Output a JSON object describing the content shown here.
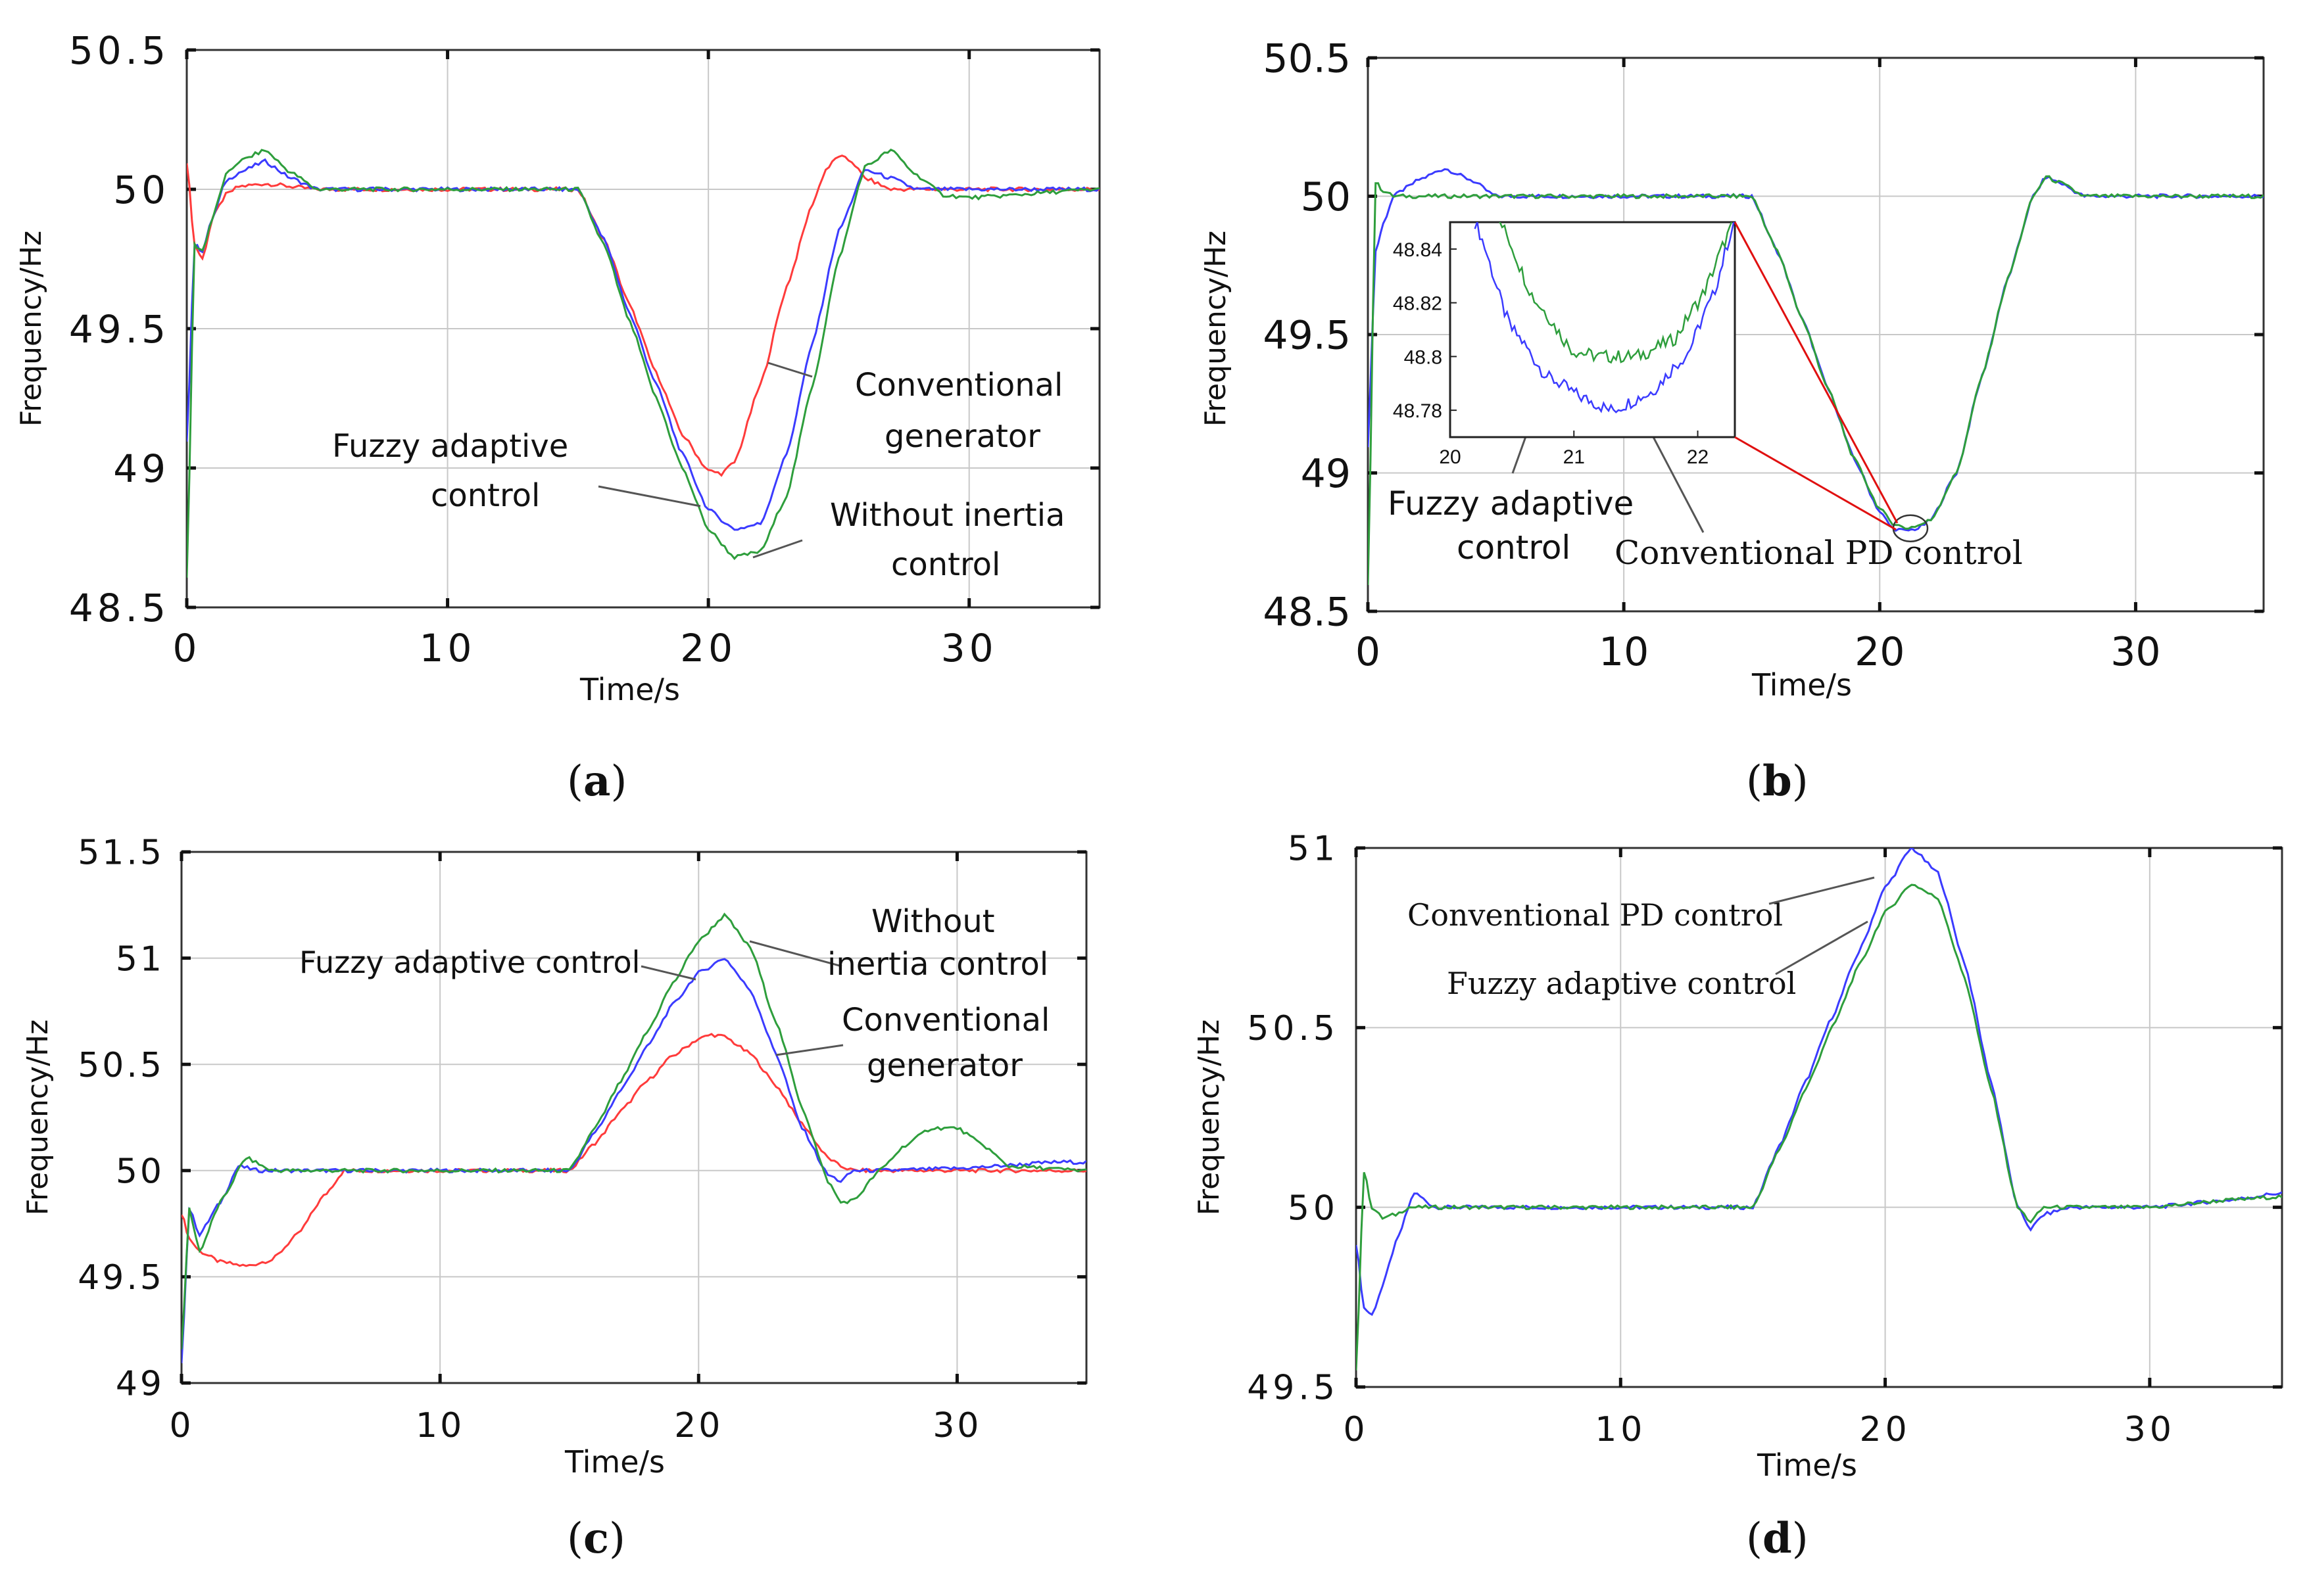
{
  "figure": {
    "colors": {
      "blue": "#3b3bff",
      "green": "#2e9e3c",
      "red": "#ff3b3b",
      "grid": "#c8c8c8",
      "axis": "#333333",
      "leader": "#555555",
      "zoom_line": "#e01010"
    }
  },
  "chart_data": [
    {
      "id": "a",
      "type": "line",
      "caption_letter": "a",
      "xlabel": "Time/s",
      "ylabel": "Frequency/Hz",
      "xlim": [
        0,
        35
      ],
      "ylim": [
        48.5,
        50.5
      ],
      "xticks": [
        0,
        10,
        20,
        30
      ],
      "xtick_labels": [
        "0",
        "10",
        "20",
        "30"
      ],
      "yticks": [
        48.5,
        49,
        49.5,
        50,
        50.5
      ],
      "ytick_labels": [
        "48.5",
        "49",
        "49.5",
        "50",
        "50.5"
      ],
      "grid": true,
      "series": [
        {
          "name": "Conventional generator",
          "color_key": "red",
          "x": [
            0,
            0.3,
            0.6,
            1.0,
            1.5,
            2,
            3,
            5,
            10,
            15,
            16,
            17,
            18,
            19,
            20,
            20.5,
            21,
            22,
            23,
            24,
            24.5,
            25,
            25.5,
            26,
            27,
            28,
            30,
            35
          ],
          "y": [
            50.1,
            49.8,
            49.75,
            49.9,
            49.98,
            50.01,
            50.02,
            50.0,
            50.0,
            50.0,
            49.82,
            49.58,
            49.34,
            49.12,
            48.99,
            48.98,
            49.02,
            49.3,
            49.65,
            49.95,
            50.07,
            50.12,
            50.1,
            50.04,
            50.0,
            50.0,
            50.0,
            50.0
          ]
        },
        {
          "name": "Fuzzy adaptive control",
          "color_key": "blue",
          "x": [
            0,
            0.3,
            0.6,
            1.0,
            1.5,
            2,
            3,
            4,
            5,
            10,
            15,
            16,
            17,
            18,
            19,
            20,
            21,
            22,
            23,
            24,
            25,
            26,
            27,
            28,
            30,
            35
          ],
          "y": [
            49.1,
            49.8,
            49.78,
            49.9,
            50.03,
            50.06,
            50.1,
            50.04,
            50.0,
            50.0,
            50.0,
            49.82,
            49.55,
            49.3,
            49.05,
            48.85,
            48.78,
            48.8,
            49.05,
            49.45,
            49.85,
            50.07,
            50.04,
            50.0,
            50.0,
            50.0
          ]
        },
        {
          "name": "Without inertia control",
          "color_key": "green",
          "x": [
            0,
            0.3,
            0.6,
            1.0,
            1.5,
            2,
            3,
            4,
            5,
            10,
            15,
            16,
            17,
            18,
            19,
            20,
            21,
            22,
            23,
            24,
            25,
            26,
            27,
            28,
            29,
            30,
            35
          ],
          "y": [
            48.6,
            49.8,
            49.78,
            49.9,
            50.05,
            50.1,
            50.14,
            50.06,
            50.0,
            50.0,
            50.0,
            49.8,
            49.52,
            49.25,
            49.0,
            48.78,
            48.68,
            48.7,
            48.9,
            49.3,
            49.75,
            50.08,
            50.14,
            50.05,
            49.98,
            49.97,
            50.0
          ]
        }
      ],
      "annotations": [
        {
          "text": "Conventional",
          "series": "Conventional generator"
        },
        {
          "text": "generator",
          "series": "Conventional generator"
        },
        {
          "text": "Fuzzy adaptive",
          "series": "Fuzzy adaptive control"
        },
        {
          "text": "control",
          "series": "Fuzzy adaptive control"
        },
        {
          "text": "Without inertia",
          "series": "Without inertia control"
        },
        {
          "text": "control",
          "series": "Without inertia control"
        }
      ]
    },
    {
      "id": "b",
      "type": "line",
      "caption_letter": "b",
      "xlabel": "Time/s",
      "ylabel": "Frequency/Hz",
      "xlim": [
        0,
        35
      ],
      "ylim": [
        48.5,
        50.5
      ],
      "xticks": [
        0,
        10,
        20,
        30
      ],
      "xtick_labels": [
        "0",
        "10",
        "20",
        "30"
      ],
      "yticks": [
        48.5,
        49,
        49.5,
        50,
        50.5
      ],
      "ytick_labels": [
        "48.5",
        "49",
        "49.5",
        "50",
        "50.5"
      ],
      "grid": true,
      "series": [
        {
          "name": "Conventional PD control",
          "color_key": "blue",
          "x": [
            0,
            0.3,
            0.6,
            1.0,
            1.5,
            2,
            3,
            4,
            5,
            10,
            15,
            16,
            17,
            18,
            19,
            20,
            20.5,
            21,
            21.5,
            22,
            23,
            24,
            25,
            26,
            26.5,
            27,
            28,
            30,
            35
          ],
          "y": [
            49.1,
            49.8,
            49.9,
            50.0,
            50.03,
            50.06,
            50.1,
            50.06,
            50.0,
            50.0,
            50.0,
            49.8,
            49.55,
            49.3,
            49.05,
            48.86,
            48.8,
            48.79,
            48.8,
            48.83,
            49.0,
            49.35,
            49.7,
            50.0,
            50.07,
            50.05,
            50.0,
            50.0,
            50.0
          ]
        },
        {
          "name": "Fuzzy adaptive control",
          "color_key": "green",
          "x": [
            0,
            0.3,
            0.6,
            1.0,
            1.5,
            2,
            3,
            4,
            5,
            10,
            15,
            16,
            17,
            18,
            19,
            20,
            20.5,
            21,
            21.5,
            22,
            23,
            24,
            25,
            26,
            26.5,
            27,
            28,
            30,
            35
          ],
          "y": [
            48.6,
            50.05,
            50.02,
            50.0,
            50.0,
            50.0,
            50.0,
            50.0,
            50.0,
            50.0,
            50.0,
            49.8,
            49.55,
            49.3,
            49.05,
            48.87,
            48.82,
            48.8,
            48.81,
            48.83,
            49.0,
            49.35,
            49.7,
            50.0,
            50.07,
            50.05,
            50.0,
            50.0,
            50.0
          ]
        }
      ],
      "inset": {
        "xlim": [
          20,
          22.3
        ],
        "ylim": [
          48.77,
          48.85
        ],
        "xticks": [
          20,
          21,
          22
        ],
        "xtick_labels": [
          "20",
          "21",
          "22"
        ],
        "yticks": [
          48.78,
          48.8,
          48.82,
          48.84
        ],
        "ytick_labels": [
          "48.78",
          "48.8",
          "48.82",
          "48.84"
        ],
        "series": [
          {
            "name": "Conventional PD control",
            "color_key": "blue",
            "x": [
              20.2,
              20.5,
              20.8,
              21.1,
              21.3,
              21.6,
              21.9,
              22.1,
              22.3
            ],
            "y": [
              48.85,
              48.81,
              48.792,
              48.784,
              48.78,
              48.786,
              48.8,
              48.82,
              48.85
            ]
          },
          {
            "name": "Fuzzy adaptive control",
            "color_key": "green",
            "x": [
              20.4,
              20.7,
              21.0,
              21.2,
              21.5,
              21.8,
              22.0,
              22.3
            ],
            "y": [
              48.85,
              48.82,
              48.802,
              48.8,
              48.8,
              48.806,
              48.82,
              48.85
            ]
          }
        ]
      },
      "annotations": [
        {
          "text": "Fuzzy adaptive",
          "series": "Fuzzy adaptive control"
        },
        {
          "text": "control",
          "series": "Fuzzy adaptive control"
        },
        {
          "text": "Conventional PD control",
          "series": "Conventional PD control"
        }
      ]
    },
    {
      "id": "c",
      "type": "line",
      "caption_letter": "c",
      "xlabel": "Time/s",
      "ylabel": "Frequency/Hz",
      "xlim": [
        0,
        35
      ],
      "ylim": [
        49,
        51.5
      ],
      "xticks": [
        0,
        10,
        20,
        30
      ],
      "xtick_labels": [
        "0",
        "10",
        "20",
        "30"
      ],
      "yticks": [
        49,
        49.5,
        50,
        50.5,
        51,
        51.5
      ],
      "ytick_labels": [
        "49",
        "49.5",
        "50",
        "50.5",
        "51",
        "51.5"
      ],
      "grid": true,
      "series": [
        {
          "name": "Conventional generator",
          "color_key": "red",
          "x": [
            0,
            0.3,
            0.7,
            1.5,
            2.5,
            3.5,
            4.5,
            5.5,
            6.3,
            7,
            10,
            15,
            16,
            17,
            18,
            19,
            20,
            20.5,
            21,
            22,
            23,
            24,
            25,
            25.5,
            26,
            28,
            30,
            35
          ],
          "y": [
            49.8,
            49.68,
            49.62,
            49.57,
            49.55,
            49.58,
            49.7,
            49.88,
            50.0,
            50.0,
            50.0,
            50.0,
            50.13,
            50.28,
            50.42,
            50.54,
            50.62,
            50.64,
            50.63,
            50.55,
            50.4,
            50.22,
            50.06,
            50.02,
            50.0,
            50.0,
            50.0,
            50.0
          ]
        },
        {
          "name": "Fuzzy adaptive control",
          "color_key": "blue",
          "x": [
            0,
            0.3,
            0.7,
            1.5,
            2.2,
            3,
            4,
            5,
            10,
            15,
            16,
            17,
            18,
            19,
            20,
            21,
            22,
            23,
            24,
            25,
            25.5,
            26,
            27,
            30,
            34,
            35
          ],
          "y": [
            49.1,
            49.82,
            49.7,
            49.85,
            50.02,
            50.0,
            50.0,
            50.0,
            50.0,
            50.0,
            50.18,
            50.38,
            50.58,
            50.78,
            50.93,
            51.0,
            50.85,
            50.55,
            50.2,
            49.98,
            49.95,
            50.0,
            50.0,
            50.01,
            50.04,
            50.04
          ]
        },
        {
          "name": "Without inertia control",
          "color_key": "green",
          "x": [
            0,
            0.3,
            0.7,
            1.5,
            2.5,
            3.5,
            5,
            10,
            15,
            16,
            17,
            18,
            19,
            20,
            21,
            22,
            23,
            24,
            25,
            25.5,
            26,
            27,
            28,
            29,
            30,
            31,
            32,
            35
          ],
          "y": [
            49.15,
            49.82,
            49.62,
            49.85,
            50.06,
            50.0,
            50.0,
            50.0,
            50.0,
            50.2,
            50.42,
            50.65,
            50.88,
            51.08,
            51.2,
            51.05,
            50.7,
            50.3,
            49.95,
            49.85,
            49.86,
            50.0,
            50.12,
            50.2,
            50.2,
            50.12,
            50.02,
            50.0
          ]
        }
      ],
      "annotations": [
        {
          "text": "Fuzzy adaptive control",
          "series": "Fuzzy adaptive control"
        },
        {
          "text": "Without",
          "series": "Without inertia control"
        },
        {
          "text": "inertia control",
          "series": "Without inertia control"
        },
        {
          "text": "Conventional",
          "series": "Conventional generator"
        },
        {
          "text": "generator",
          "series": "Conventional generator"
        }
      ]
    },
    {
      "id": "d",
      "type": "line",
      "caption_letter": "d",
      "xlabel": "Time/s",
      "ylabel": "Frequency/Hz",
      "xlim": [
        0,
        35
      ],
      "ylim": [
        49.5,
        51
      ],
      "xticks": [
        0,
        10,
        20,
        30
      ],
      "xtick_labels": [
        "0",
        "10",
        "20",
        "30"
      ],
      "yticks": [
        49.5,
        50,
        50.5,
        51
      ],
      "ytick_labels": [
        "49.5",
        "50",
        "50.5",
        "51"
      ],
      "grid": true,
      "series": [
        {
          "name": "Conventional PD control",
          "color_key": "blue",
          "x": [
            0,
            0.3,
            0.6,
            1.0,
            1.5,
            2.2,
            3,
            5,
            10,
            15,
            16,
            17,
            18,
            19,
            20,
            21,
            22,
            23,
            24,
            25,
            25.5,
            26,
            27,
            30,
            33,
            35
          ],
          "y": [
            49.9,
            49.72,
            49.7,
            49.78,
            49.9,
            50.04,
            50.0,
            50.0,
            50.0,
            50.0,
            50.17,
            50.35,
            50.53,
            50.71,
            50.89,
            51.0,
            50.93,
            50.68,
            50.35,
            50.0,
            49.94,
            49.98,
            50.0,
            50.0,
            50.02,
            50.04
          ]
        },
        {
          "name": "Fuzzy adaptive control",
          "color_key": "green",
          "x": [
            0,
            0.3,
            0.6,
            1.0,
            1.5,
            2,
            3,
            5,
            10,
            15,
            16,
            17,
            18,
            19,
            20,
            21,
            22,
            23,
            24,
            25,
            25.5,
            26,
            27,
            30,
            33,
            35
          ],
          "y": [
            49.55,
            50.1,
            50.0,
            49.97,
            49.98,
            50.0,
            50.0,
            50.0,
            50.0,
            50.0,
            50.16,
            50.33,
            50.5,
            50.67,
            50.82,
            50.9,
            50.86,
            50.64,
            50.33,
            50.0,
            49.96,
            50.0,
            50.0,
            50.0,
            50.02,
            50.03
          ]
        }
      ],
      "annotations": [
        {
          "text": "Conventional PD control",
          "series": "Conventional PD control"
        },
        {
          "text": "Fuzzy adaptive control",
          "series": "Fuzzy adaptive control"
        }
      ]
    }
  ]
}
